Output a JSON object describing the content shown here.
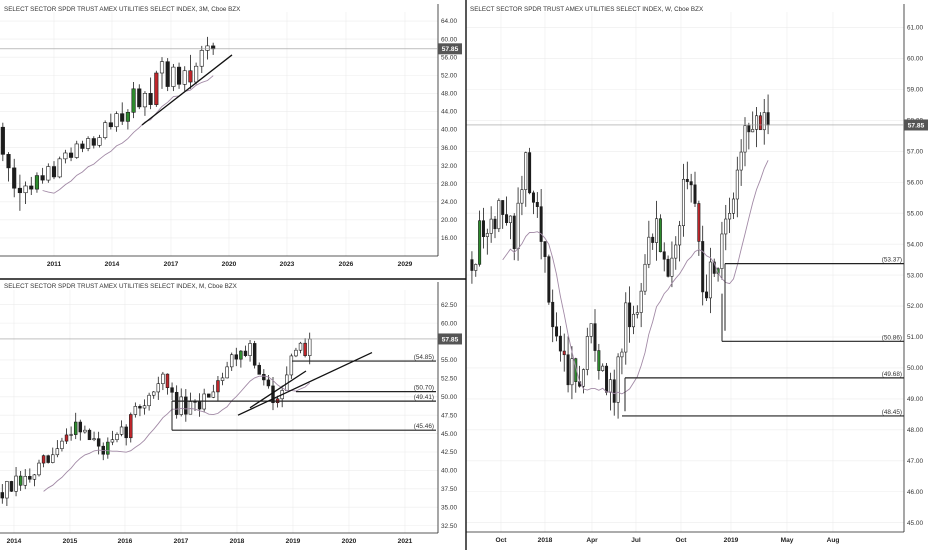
{
  "panels": {
    "top_left": {
      "title": "SELECT SECTOR SPDR TRUST AMEX UTILITIES SELECT INDEX, 3M, Cboe BZX",
      "price_tag": "57.85"
    },
    "bottom_left": {
      "title": "SELECT SECTOR SPDR TRUST AMEX UTILITIES SELECT INDEX, M, Cboe BZX",
      "price_tag": "57.85"
    },
    "right": {
      "title": "SELECT SECTOR SPDR TRUST AMEX UTILITIES SELECT INDEX, W, Cboe BZX",
      "price_tag": "57.85"
    }
  },
  "colors": {
    "bull": "#2e8b2e",
    "bear": "#c0262b",
    "neutral": "#1c1c1c",
    "ma": "#a28aa6",
    "grid": "#ececec",
    "level": "#222222"
  },
  "chart_data": [
    {
      "type": "candlestick",
      "timeframe": "3M",
      "x_ticks": [
        "2011",
        "2014",
        "2017",
        "2020",
        "2023",
        "2026",
        "2029"
      ],
      "y_ticks": [
        "64.00",
        "60.00",
        "56.00",
        "52.00",
        "48.00",
        "44.00",
        "40.00",
        "36.00",
        "32.00",
        "28.00",
        "24.00",
        "20.00",
        "16.00"
      ],
      "ylim": [
        12,
        66
      ],
      "last_price": 57.85,
      "candles": [
        [
          40.5,
          41.5,
          33.0,
          34.5
        ],
        [
          34.5,
          35.0,
          28.5,
          31.5
        ],
        [
          31.5,
          33.5,
          25.0,
          27.0
        ],
        [
          27.0,
          30.0,
          22.0,
          26.0
        ],
        [
          26.0,
          28.5,
          23.5,
          27.5
        ],
        [
          27.5,
          29.5,
          25.5,
          26.8
        ],
        [
          26.8,
          30.5,
          26.0,
          29.8
        ],
        [
          29.8,
          31.5,
          28.0,
          28.8
        ],
        [
          28.8,
          32.5,
          28.2,
          31.8
        ],
        [
          31.8,
          33.0,
          29.0,
          29.5
        ],
        [
          29.5,
          34.0,
          29.2,
          33.5
        ],
        [
          33.5,
          35.5,
          32.5,
          34.8
        ],
        [
          34.8,
          36.0,
          33.0,
          33.8
        ],
        [
          33.8,
          37.5,
          33.5,
          36.8
        ],
        [
          36.8,
          37.5,
          35.0,
          35.8
        ],
        [
          35.8,
          38.5,
          35.2,
          38.0
        ],
        [
          38.0,
          38.5,
          35.8,
          36.5
        ],
        [
          36.5,
          38.8,
          36.0,
          38.2
        ],
        [
          38.2,
          42.0,
          37.8,
          41.5
        ],
        [
          41.5,
          43.5,
          40.0,
          40.6
        ],
        [
          40.6,
          44.0,
          39.5,
          43.5
        ],
        [
          43.5,
          46.0,
          41.0,
          41.8
        ],
        [
          41.8,
          44.5,
          40.0,
          43.8
        ],
        [
          43.8,
          50.5,
          42.5,
          49.0
        ],
        [
          49.0,
          50.0,
          44.5,
          45.0
        ],
        [
          45.0,
          48.5,
          43.0,
          48.0
        ],
        [
          48.0,
          51.5,
          44.5,
          45.5
        ],
        [
          45.5,
          53.0,
          45.0,
          52.5
        ],
        [
          52.5,
          56.0,
          49.0,
          55.0
        ],
        [
          55.0,
          55.8,
          48.5,
          49.5
        ],
        [
          49.5,
          54.5,
          48.5,
          53.8
        ],
        [
          53.8,
          54.8,
          49.0,
          50.0
        ],
        [
          50.0,
          54.0,
          48.5,
          53.0
        ],
        [
          53.0,
          56.5,
          49.0,
          50.5
        ],
        [
          50.5,
          54.8,
          50.0,
          54.0
        ],
        [
          54.0,
          58.5,
          52.5,
          57.5
        ],
        [
          57.5,
          60.5,
          55.5,
          58.5
        ],
        [
          58.5,
          59.2,
          56.5,
          57.85
        ]
      ],
      "ma_visible": true
    },
    {
      "type": "candlestick",
      "timeframe": "M",
      "x_ticks": [
        "2014",
        "2015",
        "2016",
        "2017",
        "2018",
        "2019",
        "2020",
        "2021"
      ],
      "y_ticks": [
        "62.50",
        "60.00",
        "55.00",
        "52.50",
        "50.00",
        "47.50",
        "45.00",
        "42.50",
        "40.00",
        "37.50",
        "35.00",
        "32.50"
      ],
      "ylim": [
        31.5,
        64.5
      ],
      "last_price": 57.85,
      "levels": [
        {
          "label": "(54.85)",
          "value": 54.85
        },
        {
          "label": "(50.70)",
          "value": 50.7
        },
        {
          "label": "(49.41)",
          "value": 49.41
        },
        {
          "label": "(45.46)",
          "value": 45.46
        }
      ],
      "ma_visible": true,
      "trendlines": true
    },
    {
      "type": "candlestick",
      "timeframe": "W",
      "x_ticks": [
        "Oct",
        "2018",
        "Apr",
        "Jul",
        "Oct",
        "2019",
        "May",
        "Aug"
      ],
      "y_ticks": [
        "61.00",
        "60.00",
        "59.00",
        "58.00",
        "57.00",
        "56.00",
        "55.00",
        "54.00",
        "53.00",
        "52.00",
        "51.00",
        "50.00",
        "49.00",
        "48.00",
        "47.00",
        "46.00",
        "45.00"
      ],
      "ylim": [
        44.7,
        61.5
      ],
      "last_price": 57.85,
      "levels": [
        {
          "label": "(53.37)",
          "value": 53.37
        },
        {
          "label": "(50.86)",
          "value": 50.86
        },
        {
          "label": "(49.68)",
          "value": 49.68
        },
        {
          "label": "(48.45)",
          "value": 48.45
        }
      ],
      "ma_visible": true
    }
  ]
}
